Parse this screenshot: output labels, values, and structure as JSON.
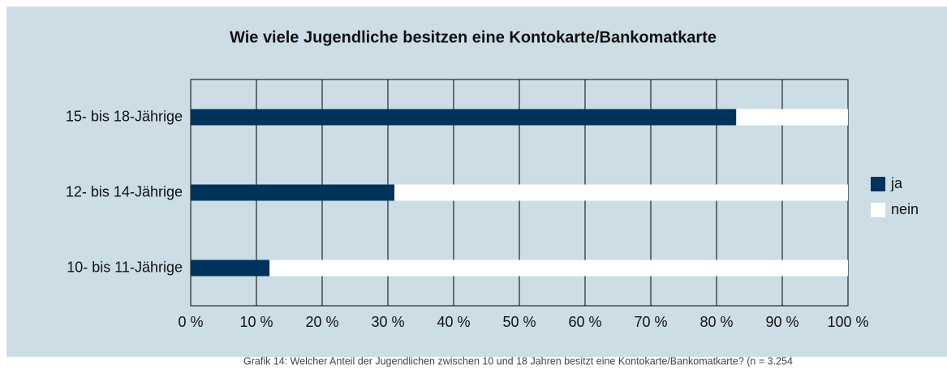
{
  "chart_data": {
    "type": "stacked-bar-horizontal",
    "title": "Wie viele Jugendliche besitzen eine Kontokarte/Bankomatkarte",
    "categories": [
      "15- bis 18-Jährige",
      "12- bis 14-Jährige",
      "10- bis 11-Jährige"
    ],
    "series": [
      {
        "name": "ja",
        "color": "#00335c",
        "values": [
          83,
          31,
          12
        ]
      },
      {
        "name": "nein",
        "color": "#ffffff",
        "values": [
          17,
          69,
          88
        ]
      }
    ],
    "xlim": [
      0,
      100
    ],
    "xticks": [
      {
        "value": 0,
        "label": "0 %"
      },
      {
        "value": 10,
        "label": "10 %"
      },
      {
        "value": 20,
        "label": "20 %"
      },
      {
        "value": 30,
        "label": "30 %"
      },
      {
        "value": 40,
        "label": "40 %"
      },
      {
        "value": 50,
        "label": "50 %"
      },
      {
        "value": 60,
        "label": "60 %"
      },
      {
        "value": 70,
        "label": "70 %"
      },
      {
        "value": 80,
        "label": "80 %"
      },
      {
        "value": 90,
        "label": "90 %"
      },
      {
        "value": 100,
        "label": "100 %"
      }
    ],
    "grid": true,
    "legend": "right",
    "caption": "Grafik 14: Welcher Anteil der Jugendlichen zwischen 10 und 18 Jahren besitzt eine Kontokarte/Bankomatkarte? (n = 3.254"
  }
}
